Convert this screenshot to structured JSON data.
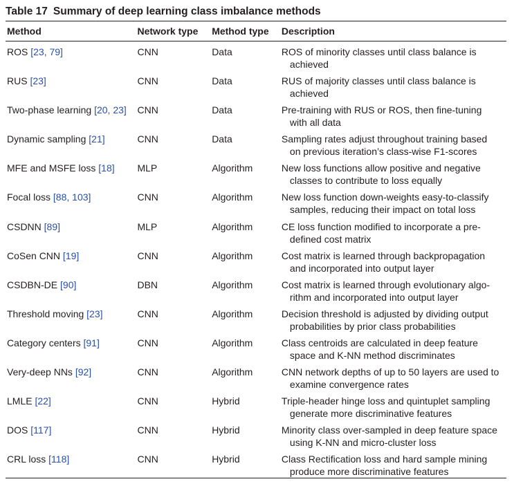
{
  "table": {
    "label": "Table 17",
    "title": "Summary of deep learning class imbalance methods",
    "headers": {
      "method": "Method",
      "network": "Network type",
      "method_type": "Method type",
      "description": "Description"
    },
    "rows": [
      {
        "name": "ROS",
        "refs": "[23, 79]",
        "network": "CNN",
        "type": "Data",
        "desc1": "ROS of minority classes until class balance is",
        "desc2": "achieved"
      },
      {
        "name": "RUS",
        "refs": "[23]",
        "network": "CNN",
        "type": "Data",
        "desc1": "RUS of majority classes until class balance is",
        "desc2": "achieved"
      },
      {
        "name": "Two-phase learning",
        "refs": "[20, 23]",
        "network": "CNN",
        "type": "Data",
        "desc1": "Pre-training with RUS or ROS, then fine-tuning",
        "desc2": "with all data"
      },
      {
        "name": "Dynamic sampling",
        "refs": "[21]",
        "network": "CNN",
        "type": "Data",
        "desc1": "Sampling rates adjust throughout training based",
        "desc2": "on previous iteration’s class-wise F1-scores"
      },
      {
        "name": "MFE and MSFE loss",
        "refs": "[18]",
        "network": "MLP",
        "type": "Algorithm",
        "desc1": "New loss functions allow positive and negative",
        "desc2": "classes to contribute to loss equally"
      },
      {
        "name": "Focal loss",
        "refs": "[88, 103]",
        "network": "CNN",
        "type": "Algorithm",
        "desc1": "New loss function down-weights easy-to-classify",
        "desc2": "samples, reducing their impact on total loss"
      },
      {
        "name": "CSDNN",
        "refs": "[89]",
        "network": "MLP",
        "type": "Algorithm",
        "desc1": "CE loss function modified to incorporate a pre-",
        "desc2": "defined cost matrix"
      },
      {
        "name": "CoSen CNN",
        "refs": "[19]",
        "network": "CNN",
        "type": "Algorithm",
        "desc1": "Cost matrix is learned through backpropagation",
        "desc2": "and incorporated into output layer"
      },
      {
        "name": "CSDBN-DE",
        "refs": "[90]",
        "network": "DBN",
        "type": "Algorithm",
        "desc1": "Cost matrix is learned through evolutionary algo-",
        "desc2": "rithm and incorporated into output layer"
      },
      {
        "name": "Threshold moving",
        "refs": "[23]",
        "network": "CNN",
        "type": "Algorithm",
        "desc1": "Decision threshold is adjusted by dividing output",
        "desc2": "probabilities by prior class probabilities"
      },
      {
        "name": "Category centers",
        "refs": "[91]",
        "network": "CNN",
        "type": "Algorithm",
        "desc1": "Class centroids are calculated in deep feature",
        "desc2": "space and K-NN method discriminates"
      },
      {
        "name": "Very-deep NNs",
        "refs": "[92]",
        "network": "CNN",
        "type": "Algorithm",
        "desc1": "CNN network depths of up to 50 layers are used to",
        "desc2": "examine convergence rates"
      },
      {
        "name": "LMLE",
        "refs": "[22]",
        "network": "CNN",
        "type": "Hybrid",
        "desc1": "Triple-header hinge loss and quintuplet sampling",
        "desc2": "generate more discriminative features"
      },
      {
        "name": "DOS",
        "refs": "[117]",
        "network": "CNN",
        "type": "Hybrid",
        "desc1": "Minority class over-sampled in deep feature space",
        "desc2": "using K-NN and micro-cluster loss"
      },
      {
        "name": "CRL loss",
        "refs": "[118]",
        "network": "CNN",
        "type": "Hybrid",
        "desc1": "Class Rectification loss and hard sample mining",
        "desc2": "produce more discriminative features"
      }
    ]
  }
}
